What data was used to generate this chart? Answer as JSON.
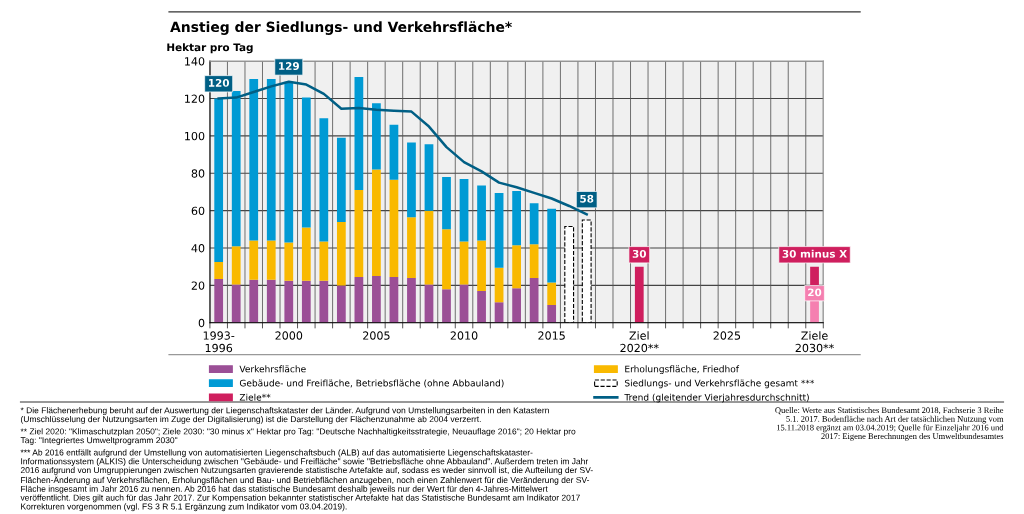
{
  "chart_data": {
    "type": "bar",
    "title": "Anstieg der Siedlungs- und Verkehrsfläche*",
    "ylabel": "Hektar pro Tag",
    "categories": [
      "1993-\n1996",
      null,
      null,
      null,
      "2000",
      null,
      null,
      null,
      null,
      "2005",
      null,
      null,
      null,
      null,
      "2010",
      null,
      null,
      null,
      null,
      "2015",
      null,
      null,
      null,
      null,
      "Ziel\n2020**",
      null,
      null,
      null,
      null,
      "2025",
      null,
      null,
      null,
      null,
      "Ziele\n2030**"
    ],
    "stacked": true,
    "totals": [
      null,
      null,
      null,
      null,
      null,
      null,
      null,
      null,
      null,
      null,
      null,
      null,
      null,
      null,
      null,
      null,
      null,
      null,
      null,
      null,
      null,
      null,
      null,
      null,
      "30",
      null,
      null,
      null,
      null,
      null,
      null,
      null,
      null,
      null,
      "30 minus X"
    ],
    "ylim": [
      0,
      140
    ],
    "yticks": [
      0,
      20,
      40,
      60,
      80,
      100,
      120,
      140
    ],
    "grid": true,
    "legend": "bottom",
    "series": [
      {
        "name": "Verkehrsfläche",
        "color": "#9b4f96",
        "values": [
          23.5,
          20.5,
          23,
          23,
          22.5,
          22.5,
          22.5,
          20,
          24.5,
          25,
          24.5,
          24,
          20.5,
          18,
          20.5,
          17,
          11,
          18.5,
          24,
          9.5,
          null,
          null,
          null,
          null,
          null,
          null,
          null,
          null,
          null,
          null,
          null,
          null,
          null,
          null,
          null
        ]
      },
      {
        "name": "Erholungsfläche, Friedhof",
        "color": "#f9b900",
        "values": [
          9,
          20.5,
          21,
          21,
          20.5,
          28.5,
          21,
          34,
          46.5,
          57,
          52,
          32.5,
          39.5,
          32,
          23,
          27,
          18.5,
          23,
          18,
          12,
          null,
          null,
          null,
          null,
          null,
          null,
          null,
          null,
          null,
          null,
          null,
          null,
          null,
          null,
          null
        ]
      },
      {
        "name": "Gebäude- und Freifläche, Betriebsfläche (ohne Abbauland)",
        "color": "#009ad4",
        "values": [
          87.5,
          83,
          86.5,
          86.5,
          86,
          69.5,
          66,
          45,
          60.5,
          35.5,
          29.5,
          40,
          35.5,
          28,
          33.5,
          29.5,
          40,
          29,
          22,
          39.5,
          null,
          null,
          null,
          null,
          null,
          null,
          null,
          null,
          null,
          null,
          null,
          null,
          null,
          null,
          null
        ]
      },
      {
        "name": "Siedlungs- und Verkehrsfläche gesamt ***",
        "color": "#ffffff",
        "line_style": "dashed",
        "values": [
          null,
          null,
          null,
          null,
          null,
          null,
          null,
          null,
          null,
          null,
          null,
          null,
          null,
          null,
          null,
          null,
          null,
          null,
          null,
          null,
          51.5,
          55,
          null,
          null,
          null,
          null,
          null,
          null,
          null,
          null,
          null,
          null,
          null,
          null,
          null
        ]
      },
      {
        "color": "#f57fb0",
        "values": [
          null,
          null,
          null,
          null,
          null,
          null,
          null,
          null,
          null,
          null,
          null,
          null,
          null,
          null,
          null,
          null,
          null,
          null,
          null,
          null,
          null,
          null,
          null,
          null,
          null,
          null,
          null,
          null,
          null,
          null,
          null,
          null,
          null,
          null,
          20
        ],
        "value_labels": [
          null,
          null,
          null,
          null,
          null,
          null,
          null,
          null,
          null,
          null,
          null,
          null,
          null,
          null,
          null,
          null,
          null,
          null,
          null,
          null,
          null,
          null,
          null,
          null,
          null,
          null,
          null,
          null,
          null,
          null,
          null,
          null,
          null,
          null,
          "20"
        ]
      },
      {
        "name": "Ziele**",
        "color": "#cf1f5e",
        "values": [
          null,
          null,
          null,
          null,
          null,
          null,
          null,
          null,
          null,
          null,
          null,
          null,
          null,
          null,
          null,
          null,
          null,
          null,
          null,
          null,
          null,
          null,
          null,
          null,
          30,
          null,
          null,
          null,
          null,
          null,
          null,
          null,
          null,
          null,
          10
        ]
      },
      {
        "name": "Trend (gleitender Vierjahresdurchschnitt)",
        "type": "line",
        "color": "#005f85",
        "values": [
          120,
          120.5,
          123.5,
          126.5,
          129,
          127.5,
          122.5,
          114.5,
          115,
          114,
          113.5,
          113,
          105,
          94,
          86,
          81,
          75,
          72.5,
          69.5,
          66.5,
          62.5,
          58,
          null,
          null,
          null,
          null,
          null,
          null,
          null,
          null,
          null,
          null,
          null,
          null,
          null
        ],
        "value_labels": [
          "120",
          null,
          null,
          null,
          "129",
          null,
          null,
          null,
          null,
          null,
          null,
          null,
          null,
          null,
          null,
          null,
          null,
          null,
          null,
          null,
          null,
          "58",
          null,
          null,
          null,
          null,
          null,
          null,
          null,
          null,
          null,
          null,
          null,
          null,
          null
        ]
      }
    ],
    "annotations": [
      "* Die Flächenerhebung beruht auf der Auswertung der Liegenschaftskataster der Länder. Aufgrund von Umstellungsarbeiten in den Katastern\n(Umschlüsselung der Nutzungsarten im Zuge der Digitalisierung) ist die Darstellung der Flächenzunahme ab 2004 verzerrt.",
      "** Ziel 2020: \"Klimaschutzplan 2050\"; Ziele 2030: \"30 minus x\" Hektar pro Tag: \"Deutsche Nachhaltigkeitsstrategie, Neuauflage 2016\"; 20 Hektar pro\nTag: \"Integriertes Umweltprogramm 2030\"",
      "*** Ab 2016 entfällt aufgrund der Umstellung von automatisierten Liegenschaftsbuch (ALB) auf das automatisierte Liegenschaftskataster-\nInformationssystem (ALKIS) die Unterscheidung zwischen \"Gebäude- und Freifläche\" sowie \"Betriebsfläche ohne Abbauland\". Außerdem treten im Jahr\n2016 aufgrund von Umgruppierungen zwischen Nutzungsarten gravierende statistische Artefakte auf, sodass es weder sinnvoll ist, die Aufteilung der SV-\nFlächen-Änderung auf Verkehrsflächen, Erholungsflächen und Bau- und Betriebflächen anzugeben, noch einen Zahlenwert für die Veränderung der SV-\nFläche insgesamt im Jahr 2016 zu nennen. Ab 2016 hat das statistische Bundesamt deshalb jeweils nur der Wert für den 4-Jahres-Mittelwert\nveröffentlicht. Dies gilt auch für das Jahr 2017. Zur Kompensation bekannter statistischer Artefakte hat das Statistische Bundesamt am Indikator 2017\nKorrekturen vorgenommen (vgl. FS 3 R 5.1 Ergänzung zum Indikator vom 03.04.2019).",
      "Quelle: Werte aus Statistisches Bundesamt 2018, Fachserie 3 Reihe\n5.1. 2017. Bodenfläche nach Art der tatsächlichen Nutzung vom\n15.11.2018 ergänzt am 03.04.2019; Quelle für Einzeljahr 2016 und\n2017: Eigene Berechnungen des Umweltbundesamtes"
    ]
  }
}
